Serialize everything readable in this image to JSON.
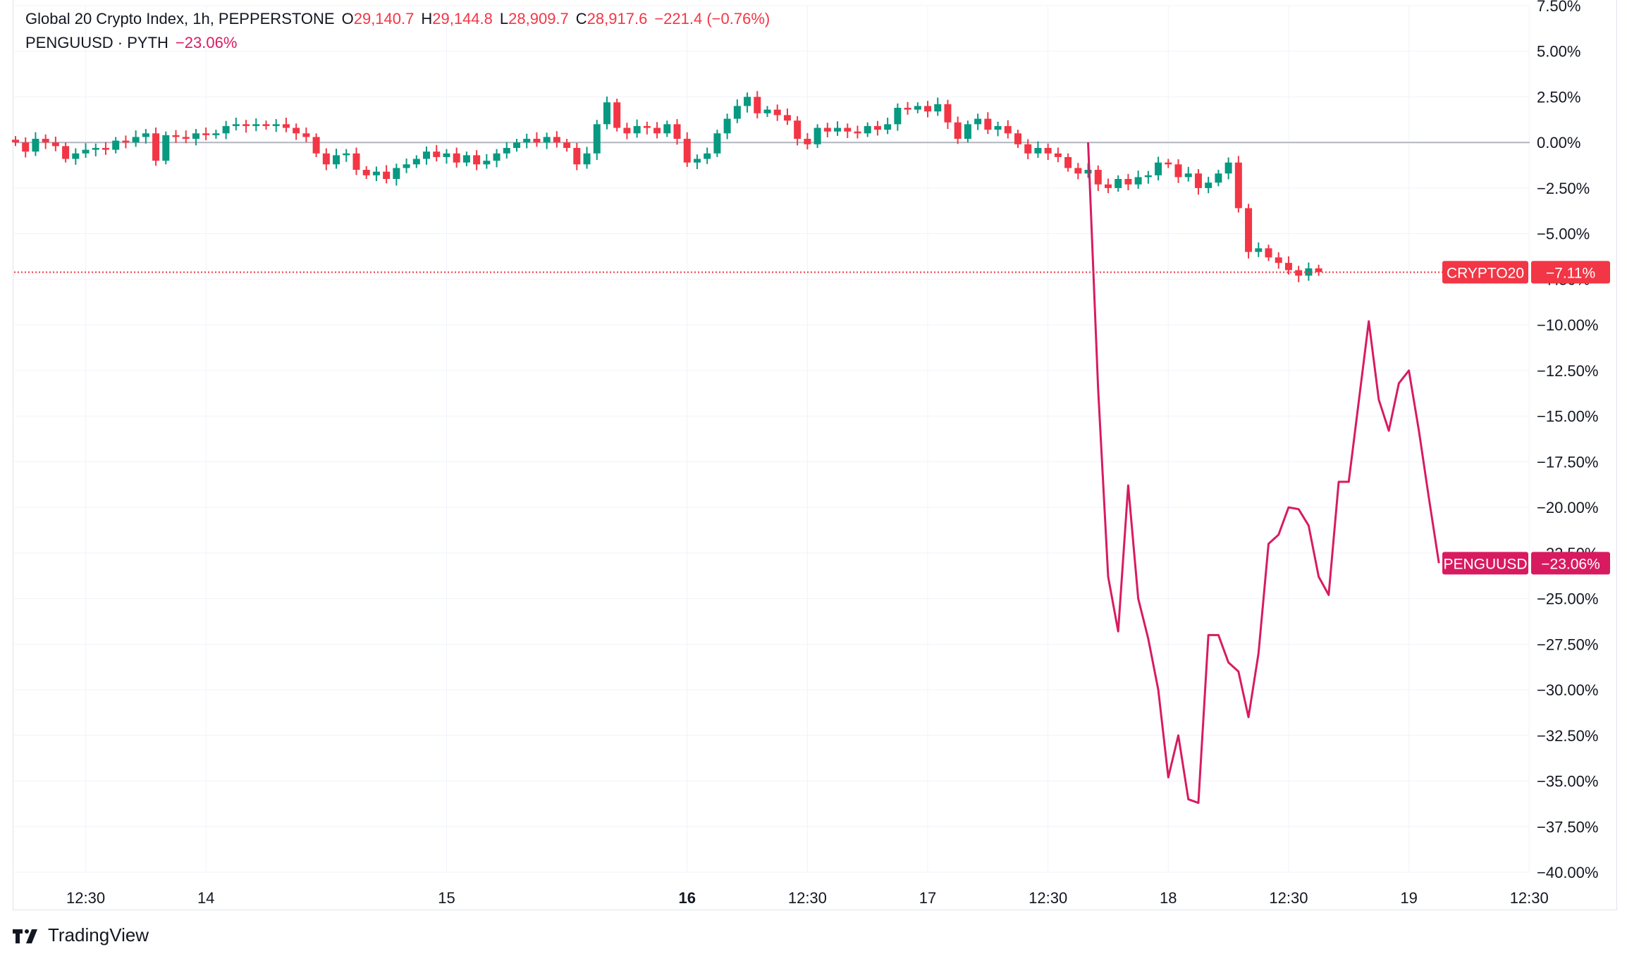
{
  "legend": {
    "main": {
      "title": "Global 20 Crypto Index, 1h, PEPPERSTONE",
      "open_label": "O",
      "open": "29,140.7",
      "high_label": "H",
      "high": "29,144.8",
      "low_label": "L",
      "low": "28,909.7",
      "close_label": "C",
      "close": "28,917.6",
      "change": "−221.4 (−0.76%)"
    },
    "compare": {
      "title": "PENGUUSD · PYTH",
      "change": "−23.06%"
    }
  },
  "branding": {
    "name": "TradingView"
  },
  "colors": {
    "up": "#089981",
    "down": "#f23645",
    "compare_line": "#d81b60",
    "grid": "#f0f3fa",
    "zero_line": "#b2b5be"
  },
  "chart_data": {
    "type": "candlestick+line",
    "y_axis": {
      "unit": "percent",
      "ylim": [
        -40,
        7.5
      ],
      "tick_labels": [
        "7.50%",
        "5.00%",
        "2.50%",
        "0.00%",
        "−2.50%",
        "−5.00%",
        "−7.50%",
        "−10.00%",
        "−12.50%",
        "−15.00%",
        "−17.50%",
        "−20.00%",
        "−22.50%",
        "−25.00%",
        "−27.50%",
        "−30.00%",
        "−32.50%",
        "−35.00%",
        "−37.50%",
        "−40.00%"
      ],
      "tick_values": [
        7.5,
        5,
        2.5,
        0,
        -2.5,
        -5,
        -7.5,
        -10,
        -12.5,
        -15,
        -17.5,
        -20,
        -22.5,
        -25,
        -27.5,
        -30,
        -32.5,
        -35,
        -37.5,
        -40
      ]
    },
    "x_axis": {
      "unit": "hours",
      "xlim": [
        0,
        148
      ],
      "ticks": [
        {
          "x": 7,
          "label": "12:30",
          "bold": false
        },
        {
          "x": 19,
          "label": "14",
          "bold": false
        },
        {
          "x": 43,
          "label": "15",
          "bold": false
        },
        {
          "x": 67,
          "label": "16",
          "bold": true
        },
        {
          "x": 79,
          "label": "12:30",
          "bold": false
        },
        {
          "x": 91,
          "label": "17",
          "bold": false
        },
        {
          "x": 103,
          "label": "12:30",
          "bold": false
        },
        {
          "x": 115,
          "label": "18",
          "bold": false
        },
        {
          "x": 127,
          "label": "12:30",
          "bold": false
        },
        {
          "x": 139,
          "label": "19",
          "bold": false
        },
        {
          "x": 151,
          "label": "12:30",
          "bold": false
        }
      ]
    },
    "series": [
      {
        "name": "CRYPTO20",
        "kind": "candlestick",
        "last_value_label": "−7.11%",
        "closes": [
          0.0,
          -0.5,
          0.2,
          0.0,
          -0.2,
          -0.9,
          -0.6,
          -0.4,
          -0.3,
          -0.4,
          0.1,
          0.0,
          0.3,
          0.5,
          -1.0,
          0.4,
          0.3,
          0.2,
          0.5,
          0.4,
          0.5,
          0.9,
          1.0,
          0.9,
          1.0,
          0.9,
          1.0,
          0.8,
          0.5,
          0.3,
          -0.6,
          -1.2,
          -0.7,
          -0.6,
          -1.5,
          -1.8,
          -1.6,
          -2.0,
          -1.4,
          -1.2,
          -0.9,
          -0.5,
          -0.8,
          -0.6,
          -1.1,
          -0.7,
          -1.2,
          -1.0,
          -0.6,
          -0.3,
          0.0,
          0.2,
          0.0,
          0.3,
          0.0,
          -0.3,
          -1.2,
          -0.6,
          1.0,
          2.2,
          0.8,
          0.5,
          0.9,
          0.8,
          0.5,
          1.0,
          0.2,
          -1.1,
          -0.9,
          -0.6,
          0.5,
          1.3,
          2.0,
          2.5,
          1.6,
          1.8,
          1.5,
          1.2,
          0.2,
          -0.1,
          0.8,
          0.6,
          0.8,
          0.6,
          0.5,
          0.9,
          0.7,
          1.0,
          1.9,
          1.8,
          2.0,
          1.7,
          2.1,
          1.1,
          0.2,
          1.0,
          1.3,
          0.7,
          0.9,
          0.5,
          -0.1,
          -0.6,
          -0.3,
          -0.6,
          -0.8,
          -1.4,
          -1.7,
          -1.5,
          -2.3,
          -2.5,
          -2.0,
          -2.3,
          -1.9,
          -1.8,
          -1.1,
          -1.2,
          -1.9,
          -1.7,
          -2.5,
          -2.2,
          -1.7,
          -1.1,
          -3.6,
          -6.0,
          -5.8,
          -6.3,
          -6.6,
          -7.0,
          -7.3,
          -6.9,
          -7.11
        ],
        "opens_offset_note": ""
      },
      {
        "name": "PENGUUSD",
        "kind": "line",
        "last_value_label": "−23.06%",
        "x": [
          107,
          108,
          109,
          110,
          111,
          112,
          113,
          114,
          115,
          116,
          117,
          118,
          119,
          120,
          121,
          122,
          123,
          124,
          125,
          126,
          127,
          128,
          129,
          130,
          131,
          132,
          133,
          134,
          135,
          136,
          137
        ],
        "values": [
          0.0,
          -13.5,
          -23.8,
          -26.8,
          -18.8,
          -25.0,
          -27.2,
          -30.0,
          -34.8,
          -32.5,
          -36.0,
          -36.2,
          -27.0,
          -27.0,
          -28.5,
          -29.0,
          -31.5,
          -28.0,
          -22.0,
          -21.5,
          -20.0,
          -20.1,
          -21.0,
          -23.8,
          -24.8,
          -18.6,
          -18.6,
          -14.2,
          -9.8,
          -14.1,
          -15.8
        ]
      }
    ],
    "extra_line_values": [
      -13.2,
      -12.5,
      -15.8,
      -19.5,
      -23.06
    ]
  }
}
